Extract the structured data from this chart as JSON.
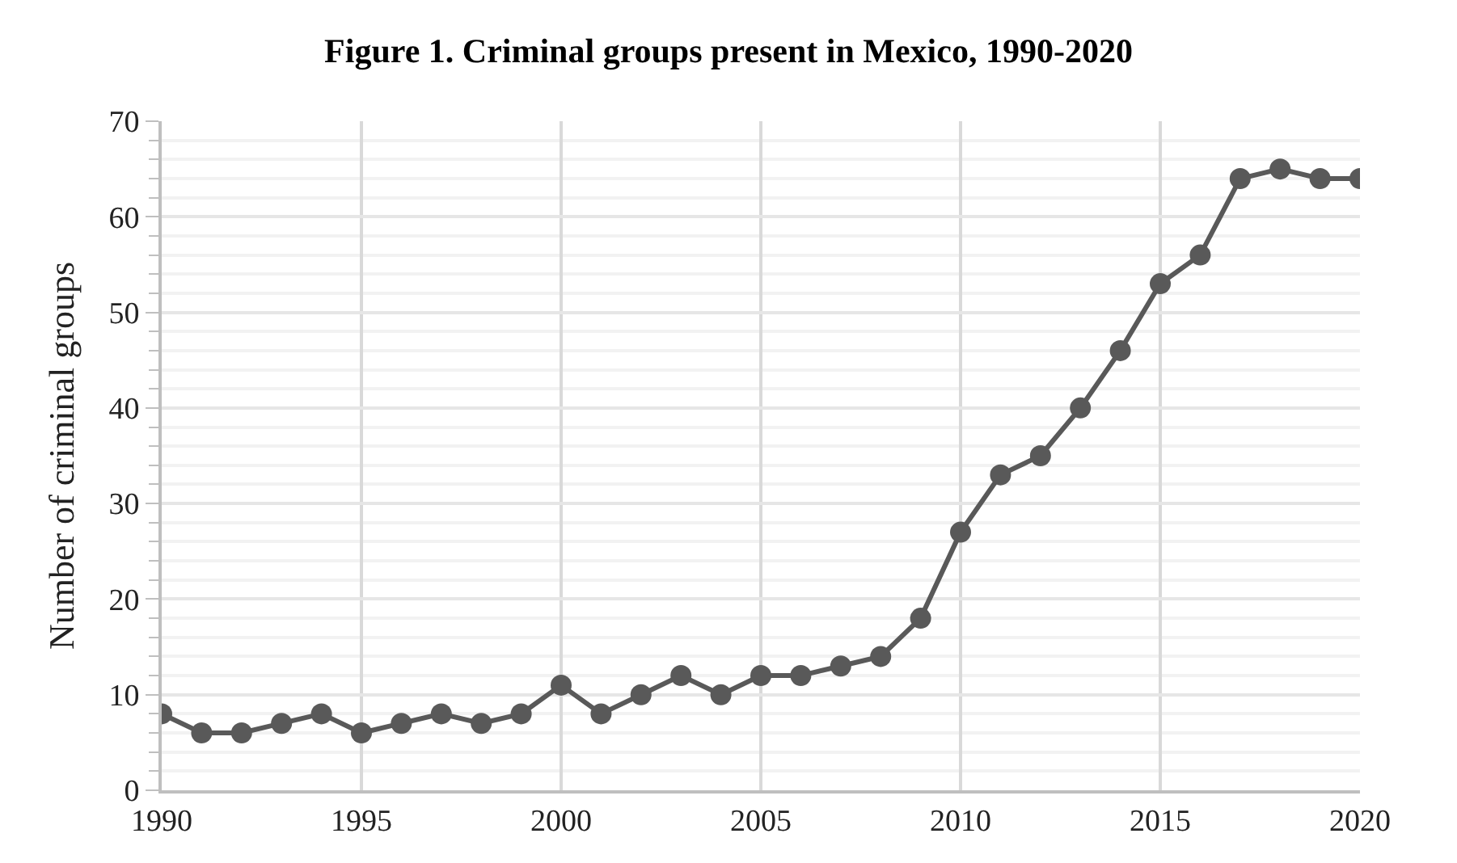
{
  "chart_data": {
    "type": "line",
    "title": "Figure 1. Criminal groups present in Mexico, 1990-2020",
    "ylabel": "Number of criminal groups",
    "x": [
      1990,
      1991,
      1992,
      1993,
      1994,
      1995,
      1996,
      1997,
      1998,
      1999,
      2000,
      2001,
      2002,
      2003,
      2004,
      2005,
      2006,
      2007,
      2008,
      2009,
      2010,
      2011,
      2012,
      2013,
      2014,
      2015,
      2016,
      2017,
      2018,
      2019,
      2020
    ],
    "series": [
      {
        "color": "#595959",
        "values": [
          8,
          6,
          6,
          7,
          8,
          6,
          7,
          8,
          7,
          8,
          11,
          8,
          10,
          12,
          10,
          12,
          12,
          13,
          14,
          18,
          27,
          33,
          35,
          40,
          46,
          53,
          56,
          64,
          65,
          64,
          64
        ]
      }
    ],
    "xlim": [
      1990,
      2020
    ],
    "xticks": [
      1990,
      1995,
      2000,
      2005,
      2010,
      2015,
      2020
    ],
    "ylim": [
      0,
      70
    ],
    "yticks": [
      0,
      10,
      20,
      30,
      40,
      50,
      60,
      70
    ],
    "grid": true,
    "marker": "circle",
    "line_style": "solid"
  }
}
